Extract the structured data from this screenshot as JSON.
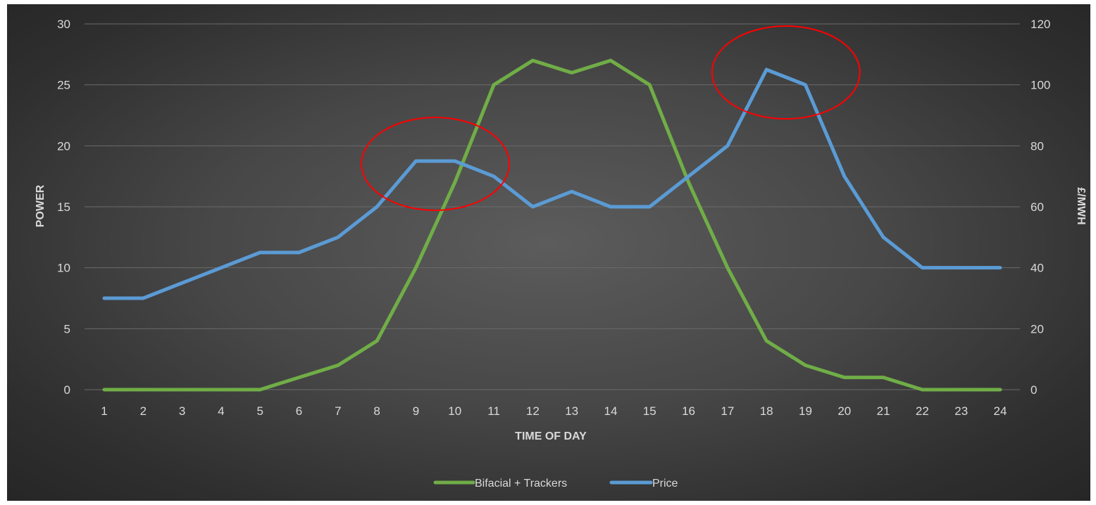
{
  "chart_data": {
    "type": "line",
    "title": "",
    "xlabel": "TIME OF DAY",
    "ylabel_left": "POWER",
    "ylabel_right": "£/MWH",
    "x": [
      1,
      2,
      3,
      4,
      5,
      6,
      7,
      8,
      9,
      10,
      11,
      12,
      13,
      14,
      15,
      16,
      17,
      18,
      19,
      20,
      21,
      22,
      23,
      24
    ],
    "x_tick_labels": [
      "1",
      "2",
      "3",
      "4",
      "5",
      "6",
      "7",
      "8",
      "9",
      "10",
      "11",
      "12",
      "13",
      "14",
      "15",
      "16",
      "17",
      "18",
      "19",
      "20",
      "21",
      "22",
      "23",
      "24"
    ],
    "ylim_left": [
      0,
      30
    ],
    "yticks_left": [
      0,
      5,
      10,
      15,
      20,
      25,
      30
    ],
    "ylim_right": [
      0,
      120
    ],
    "yticks_right": [
      0,
      20,
      40,
      60,
      80,
      100,
      120
    ],
    "grid": true,
    "legend_position": "bottom",
    "series": [
      {
        "name": "Bifacial + Trackers",
        "axis": "left",
        "color": "#70ad47",
        "values": [
          0,
          0,
          0,
          0,
          0,
          1,
          2,
          4,
          10,
          17,
          25,
          27,
          26,
          27,
          25,
          17,
          10,
          4,
          2,
          1,
          1,
          0,
          0,
          0
        ]
      },
      {
        "name": "Price",
        "axis": "right",
        "color": "#5b9bd5",
        "values": [
          30,
          30,
          35,
          40,
          45,
          45,
          50,
          60,
          75,
          75,
          70,
          60,
          65,
          60,
          60,
          70,
          80,
          105,
          100,
          70,
          50,
          40,
          40,
          40
        ]
      }
    ],
    "annotations": [
      {
        "shape": "ellipse",
        "color": "#ff0000",
        "around_x": [
          9,
          10
        ],
        "around_y_right": 75
      },
      {
        "shape": "ellipse",
        "color": "#ff0000",
        "around_x": [
          18,
          19
        ],
        "around_y_right": 105
      }
    ]
  }
}
